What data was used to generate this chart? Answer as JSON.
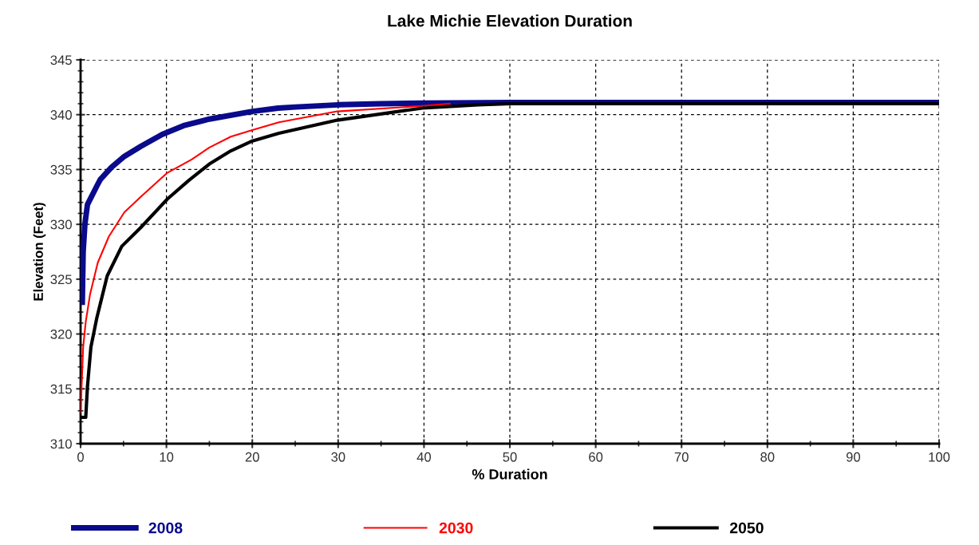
{
  "chart_data": {
    "type": "line",
    "title": "Lake Michie Elevation Duration",
    "xlabel": "% Duration",
    "ylabel": "Elevation (Feet)",
    "xlim": [
      0,
      100
    ],
    "xticks": [
      0,
      10,
      20,
      30,
      40,
      50,
      60,
      70,
      80,
      90,
      100
    ],
    "ylim": [
      310,
      345
    ],
    "yticks": [
      310,
      315,
      320,
      325,
      330,
      335,
      340,
      345
    ],
    "grid": true,
    "legend": "bottom",
    "line_style": "solid",
    "marker": "none",
    "series": [
      {
        "name": "2008",
        "color": "#0a0a8c",
        "x": [
          0.2,
          0.3,
          0.5,
          0.8,
          1.9,
          2.3,
          3.6,
          5.1,
          7,
          9.5,
          12,
          15,
          20,
          23,
          25,
          30,
          35,
          40,
          50,
          100
        ],
        "values": [
          322.9,
          327.5,
          330,
          331.8,
          333.5,
          334.1,
          335.2,
          336.2,
          337.1,
          338.2,
          339,
          339.6,
          340.3,
          340.6,
          340.7,
          340.9,
          341,
          341.05,
          341.1,
          341.1
        ]
      },
      {
        "name": "2030",
        "color": "#ff0000",
        "x": [
          0,
          0.3,
          0.6,
          1.1,
          2,
          3.3,
          5.1,
          7,
          10.1,
          12.9,
          15,
          17.5,
          20,
          23.1,
          29.9,
          39.8,
          43
        ],
        "values": [
          312.8,
          318.8,
          321.1,
          323.6,
          326.5,
          328.9,
          331.1,
          332.5,
          334.7,
          335.9,
          337,
          338,
          338.6,
          339.3,
          340.3,
          340.8,
          341
        ]
      },
      {
        "name": "2050",
        "color": "#000000",
        "x": [
          0,
          0.6,
          0.8,
          1.2,
          1.9,
          3.1,
          4.8,
          7,
          10.1,
          12.6,
          15,
          17.5,
          20,
          23.1,
          29.9,
          39.8,
          46.3,
          50,
          100
        ],
        "values": [
          312.4,
          312.4,
          315.2,
          318.8,
          321.5,
          325.3,
          328,
          329.7,
          332.3,
          334,
          335.5,
          336.7,
          337.6,
          338.3,
          339.5,
          340.6,
          340.9,
          341,
          341
        ]
      }
    ]
  }
}
